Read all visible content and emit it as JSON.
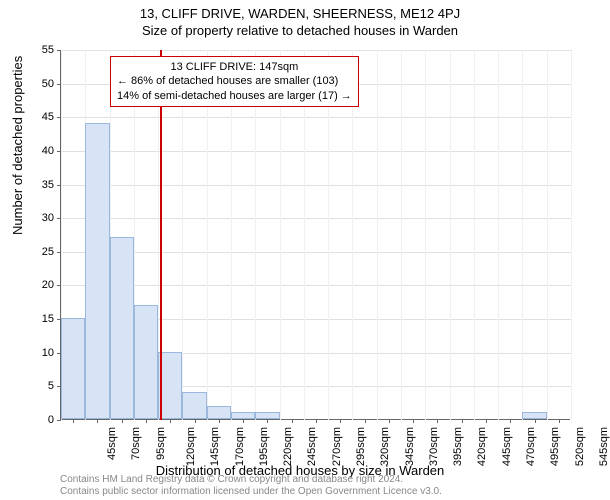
{
  "titles": {
    "addr": "13, CLIFF DRIVE, WARDEN, SHEERNESS, ME12 4PJ",
    "sub": "Size of property relative to detached houses in Warden"
  },
  "chart": {
    "type": "histogram",
    "y_label": "Number of detached properties",
    "x_label": "Distribution of detached houses by size in Warden",
    "ylim": [
      0,
      55
    ],
    "ytick_step": 5,
    "x_categories": [
      "45sqm",
      "70sqm",
      "95sqm",
      "120sqm",
      "145sqm",
      "170sqm",
      "195sqm",
      "220sqm",
      "245sqm",
      "270sqm",
      "295sqm",
      "320sqm",
      "345sqm",
      "370sqm",
      "395sqm",
      "420sqm",
      "445sqm",
      "470sqm",
      "495sqm",
      "520sqm",
      "545sqm"
    ],
    "values": [
      15,
      44,
      27,
      17,
      10,
      4,
      2,
      1,
      1,
      0,
      0,
      0,
      0,
      0,
      0,
      0,
      0,
      0,
      0,
      1,
      0
    ],
    "bar_fill": "#d6e4f5",
    "bar_border": "#9bb8dc",
    "grid_color": "#e0e0e0",
    "background_color": "#ffffff",
    "axis_color": "#666666",
    "font_tick": 11,
    "font_label": 13,
    "marker": {
      "position_category_index": 4.08,
      "color": "#cc0000"
    },
    "annotation": {
      "line1": "13 CLIFF DRIVE: 147sqm",
      "line2": "← 86% of detached houses are smaller (103)",
      "line3": "14% of semi-detached houses are larger (17) →",
      "border_color": "#cc0000"
    }
  },
  "footer": {
    "line1": "Contains HM Land Registry data © Crown copyright and database right 2024.",
    "line2": "Contains public sector information licensed under the Open Government Licence v3.0."
  }
}
